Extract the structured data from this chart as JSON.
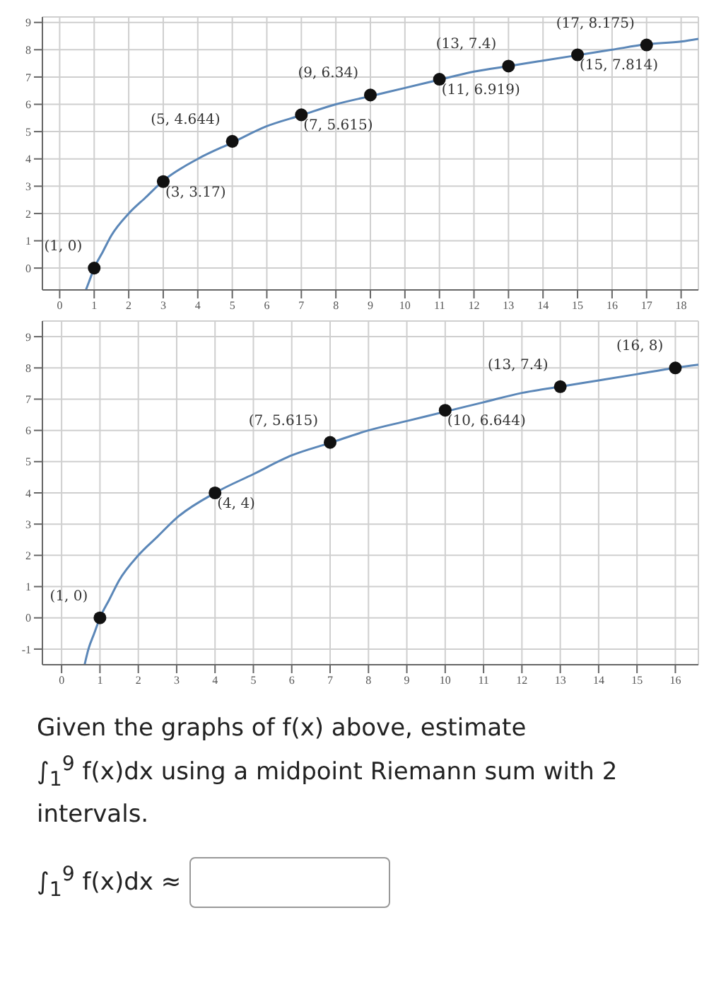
{
  "chart_data": [
    {
      "type": "line",
      "xlim": [
        -0.5,
        18.5
      ],
      "xticks": [
        0,
        1,
        2,
        3,
        4,
        5,
        6,
        7,
        8,
        9,
        10,
        11,
        12,
        13,
        14,
        15,
        16,
        17,
        18
      ],
      "ylim": [
        -0.8,
        9.2
      ],
      "yticks": [
        0,
        1,
        2,
        3,
        4,
        5,
        6,
        7,
        8,
        9
      ],
      "grid": true,
      "series": [
        {
          "type": "line",
          "color": "#5b87b8",
          "marker": "none",
          "line_style": "solid",
          "x": [
            0.76,
            0.85,
            1,
            1.25,
            1.5,
            2,
            2.5,
            3,
            4,
            5,
            6,
            7,
            8,
            9,
            10,
            11,
            12,
            13,
            14,
            15,
            16,
            17,
            18,
            18.5
          ],
          "values": [
            -0.8,
            -0.5,
            0,
            0.6,
            1.2,
            2,
            2.6,
            3.2,
            4,
            4.6,
            5.2,
            5.6,
            6,
            6.3,
            6.6,
            6.9,
            7.2,
            7.4,
            7.6,
            7.8,
            8,
            8.2,
            8.3,
            8.4
          ]
        },
        {
          "type": "scatter",
          "color": "#111111",
          "marker": "circle",
          "x": [
            1,
            3,
            5,
            7,
            9,
            11,
            13,
            15,
            17
          ],
          "values": [
            0,
            3.17,
            4.644,
            5.615,
            6.34,
            6.919,
            7.4,
            7.814,
            8.175
          ],
          "value_labels": [
            "(1, 0)",
            "(3, 3.17)",
            "(5, 4.644)",
            "(7, 5.615)",
            "(9, 6.34)",
            "(11, 6.919)",
            "(13, 7.4)",
            "(15, 7.814)",
            "(17, 8.175)"
          ]
        }
      ]
    },
    {
      "type": "line",
      "xlim": [
        -0.5,
        16.6
      ],
      "xticks": [
        0,
        1,
        2,
        3,
        4,
        5,
        6,
        7,
        8,
        9,
        10,
        11,
        12,
        13,
        14,
        15,
        16
      ],
      "ylim": [
        -1.5,
        9.5
      ],
      "yticks": [
        -1,
        0,
        1,
        2,
        3,
        4,
        5,
        6,
        7,
        8,
        9
      ],
      "grid": true,
      "series": [
        {
          "type": "line",
          "color": "#5b87b8",
          "marker": "none",
          "line_style": "solid",
          "x": [
            0.6,
            0.7,
            0.85,
            1,
            1.25,
            1.5,
            2,
            2.5,
            3,
            4,
            5,
            6,
            7,
            8,
            9,
            10,
            11,
            12,
            13,
            14,
            15,
            16,
            16.6
          ],
          "values": [
            -1.5,
            -1,
            -0.5,
            0,
            0.6,
            1.2,
            2,
            2.6,
            3.2,
            4,
            4.6,
            5.2,
            5.6,
            6,
            6.3,
            6.6,
            6.9,
            7.2,
            7.4,
            7.6,
            7.8,
            8,
            8.1
          ]
        },
        {
          "type": "scatter",
          "color": "#111111",
          "marker": "circle",
          "x": [
            1,
            4,
            7,
            10,
            13,
            16
          ],
          "values": [
            0,
            4,
            5.615,
            6.644,
            7.4,
            8
          ],
          "value_labels": [
            "(1, 0)",
            "(4, 4)",
            "(7, 5.615)",
            "(10, 6.644)",
            "(13, 7.4)",
            "(16, 8)"
          ]
        }
      ]
    },
    {
      "type": "other",
      "annotations": [
        "Given the graphs of f(x) above, estimate",
        "∫$_{1}$$^{9}$ f(x)dx using a midpoint Riemann sum with 2 intervals.",
        "∫$_{1}$$^{9}$ f(x)dx ≈"
      ]
    }
  ]
}
